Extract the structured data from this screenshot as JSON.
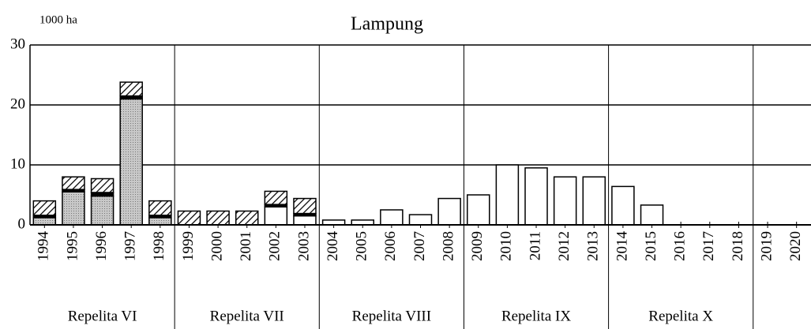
{
  "chart_data": {
    "type": "bar",
    "stacked": true,
    "title": "Lampung",
    "y_axis_label": "1000 ha",
    "categories": [
      "1994",
      "1995",
      "1996",
      "1997",
      "1998",
      "1999",
      "2000",
      "2001",
      "2002",
      "2003",
      "2004",
      "2005",
      "2006",
      "2007",
      "2008",
      "2009",
      "2010",
      "2011",
      "2012",
      "2013",
      "2014",
      "2015",
      "2016",
      "2017",
      "2018",
      "2019",
      "2020"
    ],
    "series": [
      {
        "color": "#bdbdbd",
        "pattern": "stipple",
        "values": [
          1.2,
          5.5,
          4.8,
          21,
          1.2,
          0,
          0,
          0,
          0,
          0,
          0,
          0,
          0,
          0,
          0,
          0,
          0,
          0,
          0,
          0,
          0,
          0,
          0,
          0,
          0,
          0,
          0
        ]
      },
      {
        "color": "#ffffff",
        "values": [
          0,
          0,
          0,
          0,
          0,
          0,
          0,
          0,
          3.0,
          1.5,
          0.8,
          0.8,
          2.5,
          1.7,
          4.4,
          5.0,
          10,
          9.5,
          8.0,
          8.0,
          6.4,
          3.3,
          0,
          0,
          0,
          0,
          0
        ]
      },
      {
        "color": "#000000",
        "values": [
          0.4,
          0.4,
          0.6,
          0.5,
          0.4,
          0,
          0,
          0,
          0.4,
          0.4,
          0,
          0,
          0,
          0,
          0,
          0,
          0,
          0,
          0,
          0,
          0,
          0,
          0,
          0,
          0,
          0,
          0
        ]
      },
      {
        "color": "#000000",
        "pattern": "hatch",
        "values": [
          2.4,
          2.1,
          2.3,
          2.3,
          2.4,
          2.3,
          2.3,
          2.3,
          2.2,
          2.5,
          0,
          0,
          0,
          0,
          0,
          0,
          0,
          0,
          0,
          0,
          0,
          0,
          0,
          0,
          0,
          0,
          0
        ]
      }
    ],
    "groups": [
      "Repelita VI",
      "Repelita VII",
      "Repelita VIII",
      "Repelita IX",
      "Repelita X"
    ],
    "ylim": [
      0,
      30
    ],
    "yticks": [
      0,
      10,
      20,
      30
    ],
    "grid": true
  }
}
